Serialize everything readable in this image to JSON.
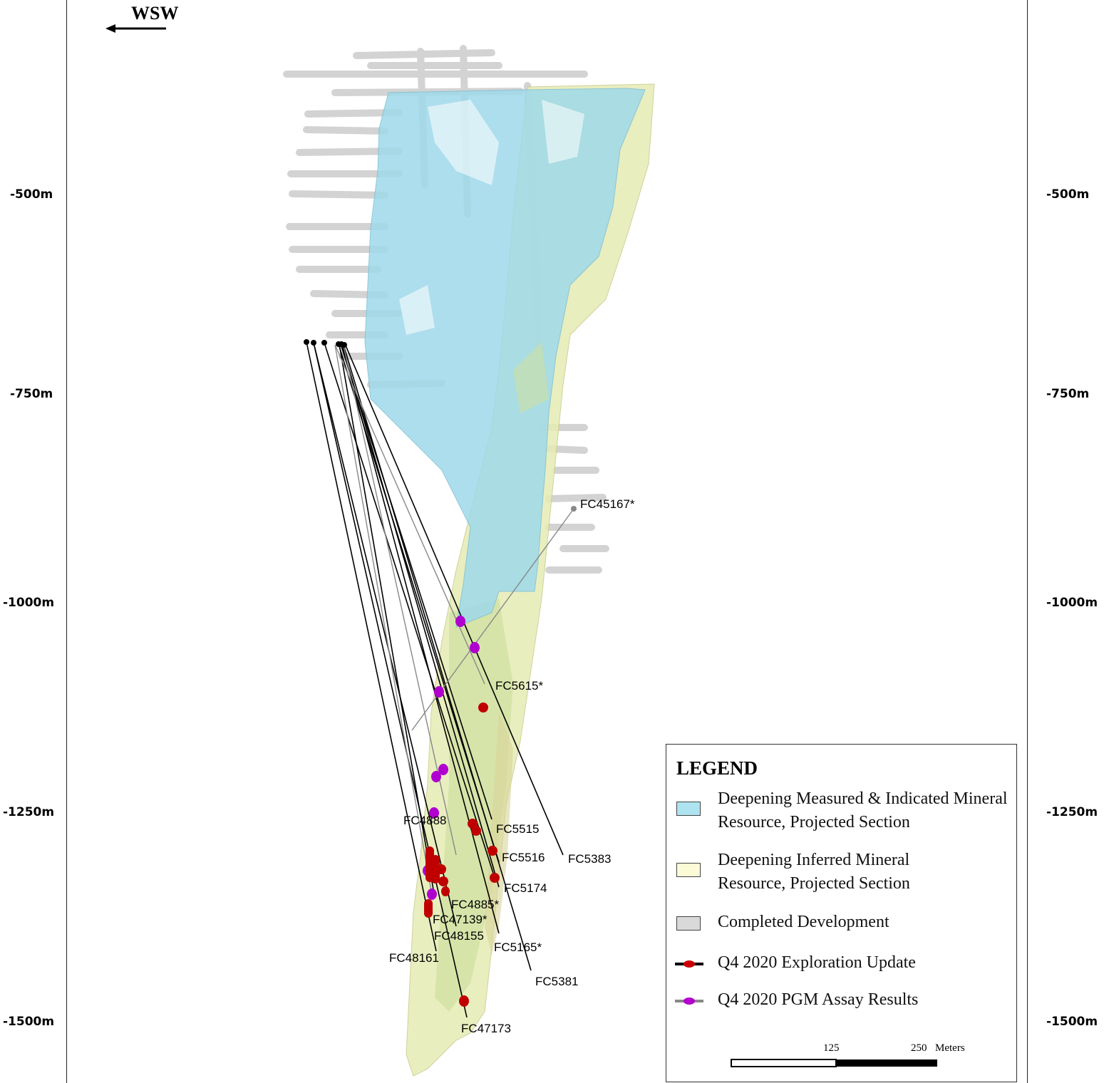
{
  "direction": {
    "label": "WSW",
    "arrow": "left-arrow"
  },
  "elevation_labels": [
    "-500m",
    "-750m",
    "-1000m",
    "-1250m",
    "-1500m"
  ],
  "drill_holes": [
    "FC45167*",
    "FC5615*",
    "FC4888",
    "FC5515",
    "FC5516",
    "FC5383",
    "FC5174",
    "FC4885*",
    "FC47139*",
    "FC48155",
    "FC5165*",
    "FC48161",
    "FC5381",
    "FC47173"
  ],
  "legend": {
    "title": "LEGEND",
    "items": [
      {
        "label": "Deepening Measured & Indicated Mineral Resource, Projected Section",
        "color": "#aee3f0",
        "symbol": "box"
      },
      {
        "label": "Deepening Inferred Mineral Resource, Projected Section",
        "color": "#fbfbd8",
        "symbol": "box"
      },
      {
        "label": "Completed Development",
        "color": "#d9d9d9",
        "symbol": "box"
      },
      {
        "label": "Q4 2020 Exploration Update",
        "color": "#cc0000",
        "line_color": "#000000",
        "symbol": "line"
      },
      {
        "label": "Q4 2020 PGM Assay Results",
        "color": "#b300cc",
        "line_color": "#888888",
        "symbol": "line"
      }
    ]
  },
  "scale": {
    "mid": "125",
    "end": "250",
    "unit": "Meters"
  },
  "colors": {
    "measured_indicated": "#9fd9ea",
    "inferred": "#e8eebb",
    "development": "#c8c8c8",
    "exploration_marker": "#c00000",
    "pgm_marker": "#b000d0"
  }
}
